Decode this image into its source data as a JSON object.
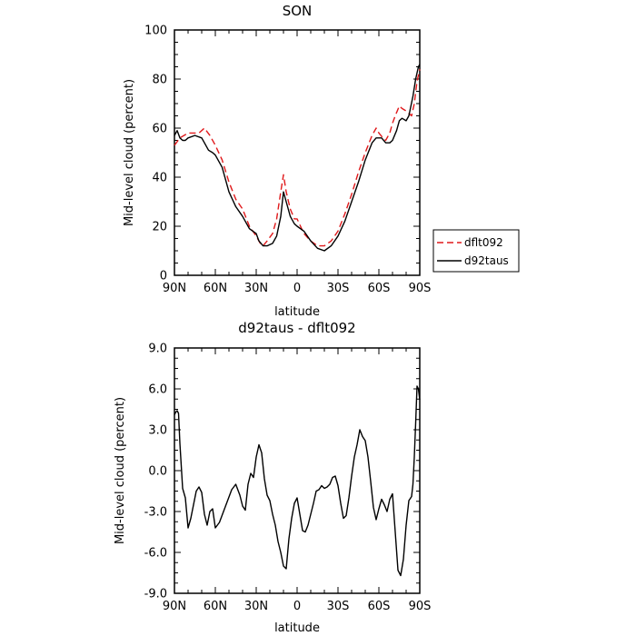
{
  "chart_data": [
    {
      "type": "line",
      "title": "SON",
      "xlabel": "latitude",
      "ylabel": "Mid-level cloud (percent)",
      "xlim": [
        90,
        -90
      ],
      "ylim": [
        0,
        100
      ],
      "xticks": [
        90,
        60,
        30,
        0,
        -30,
        -60,
        -90
      ],
      "xtick_labels": [
        "90N",
        "60N",
        "30N",
        "0",
        "30S",
        "60S",
        "90S"
      ],
      "yticks": [
        0,
        20,
        40,
        60,
        80,
        100
      ],
      "ytick_labels": [
        "0",
        "20",
        "40",
        "60",
        "80",
        "100"
      ],
      "grid": false,
      "legend_position": "right",
      "series": [
        {
          "name": "dflt092",
          "color": "#e0191b",
          "dash": "dashed",
          "x": [
            90,
            86,
            80,
            75,
            72,
            68,
            64,
            60,
            55,
            50,
            45,
            40,
            35,
            30,
            27,
            25,
            22,
            18,
            15,
            12,
            10,
            8,
            5,
            2,
            0,
            -5,
            -10,
            -15,
            -20,
            -25,
            -30,
            -35,
            -40,
            -45,
            -50,
            -55,
            -58,
            -60,
            -63,
            -65,
            -68,
            -70,
            -72,
            -75,
            -77,
            -80,
            -82,
            -84,
            -86,
            -88,
            -90
          ],
          "values": [
            53,
            56,
            58,
            58,
            58,
            60,
            57,
            53,
            47,
            38,
            31,
            27,
            20,
            16,
            13,
            12,
            14,
            17,
            23,
            34,
            41,
            34,
            27,
            23,
            23,
            17,
            14,
            12,
            12,
            14,
            18,
            25,
            33,
            42,
            50,
            57,
            60,
            58,
            56,
            55,
            58,
            62,
            65,
            69,
            68,
            67,
            66,
            65,
            70,
            79,
            84
          ]
        },
        {
          "name": "d92taus",
          "color": "#000000",
          "dash": "solid",
          "x": [
            90,
            88,
            86,
            84,
            82,
            80,
            75,
            70,
            68,
            65,
            62,
            60,
            55,
            50,
            45,
            40,
            35,
            30,
            28,
            25,
            22,
            18,
            15,
            12,
            10,
            8,
            5,
            2,
            0,
            -5,
            -10,
            -15,
            -20,
            -25,
            -30,
            -35,
            -40,
            -45,
            -50,
            -55,
            -58,
            -60,
            -62,
            -65,
            -68,
            -70,
            -73,
            -75,
            -77,
            -80,
            -82,
            -85,
            -87,
            -89,
            -90
          ],
          "values": [
            57,
            59,
            56,
            55,
            55,
            56,
            57,
            56,
            54,
            51,
            50,
            49,
            44,
            34,
            28,
            24,
            19,
            17,
            14,
            12,
            12,
            13,
            16,
            24,
            34,
            30,
            24,
            21,
            20,
            18,
            14,
            11,
            10,
            12,
            16,
            22,
            30,
            38,
            47,
            54,
            56,
            56,
            56,
            54,
            54,
            55,
            59,
            63,
            64,
            63,
            65,
            73,
            80,
            85,
            86
          ]
        }
      ]
    },
    {
      "type": "line",
      "title": "d92taus - dflt092",
      "xlabel": "latitude",
      "ylabel": "Mid-level cloud (percent)",
      "xlim": [
        90,
        -90
      ],
      "ylim": [
        -9,
        9
      ],
      "xticks": [
        90,
        60,
        30,
        0,
        -30,
        -60,
        -90
      ],
      "xtick_labels": [
        "90N",
        "60N",
        "30N",
        "0",
        "30S",
        "60S",
        "90S"
      ],
      "yticks": [
        -9,
        -6,
        -3,
        0,
        3,
        6,
        9
      ],
      "ytick_labels": [
        "-9.0",
        "-6.0",
        "-3.0",
        "0.0",
        "3.0",
        "6.0",
        "9.0"
      ],
      "grid": false,
      "series": [
        {
          "color": "#000000",
          "dash": "solid",
          "x": [
            90,
            89,
            88,
            87,
            86,
            84,
            82,
            80,
            78,
            76,
            75,
            74,
            72,
            70,
            68,
            66,
            64,
            62,
            60,
            57,
            54,
            51,
            48,
            45,
            42,
            40,
            38,
            36,
            34,
            32,
            30,
            28,
            26,
            24,
            22,
            20,
            18,
            16,
            14,
            12,
            10,
            8,
            6,
            4,
            2,
            0,
            -2,
            -4,
            -6,
            -8,
            -10,
            -12,
            -14,
            -16,
            -18,
            -20,
            -22,
            -24,
            -26,
            -28,
            -30,
            -32,
            -34,
            -36,
            -38,
            -40,
            -42,
            -44,
            -46,
            -48,
            -50,
            -52,
            -54,
            -56,
            -58,
            -60,
            -62,
            -64,
            -66,
            -68,
            -70,
            -72,
            -74,
            -76,
            -78,
            -80,
            -82,
            -84,
            -85,
            -86,
            -87,
            -88,
            -89,
            -90
          ],
          "values": [
            4.1,
            4.3,
            4.4,
            4.2,
            2.0,
            -1.3,
            -2.0,
            -4.2,
            -3.5,
            -2.5,
            -2.0,
            -1.5,
            -1.2,
            -1.6,
            -3.2,
            -4.0,
            -3.0,
            -2.8,
            -4.2,
            -3.8,
            -3.0,
            -2.2,
            -1.4,
            -1.0,
            -1.8,
            -2.6,
            -2.9,
            -1.0,
            -0.2,
            -0.5,
            1.0,
            1.9,
            1.3,
            -0.6,
            -1.8,
            -2.2,
            -3.2,
            -4.0,
            -5.2,
            -6.0,
            -7.0,
            -7.2,
            -5.0,
            -3.5,
            -2.4,
            -2.0,
            -3.2,
            -4.4,
            -4.5,
            -4.0,
            -3.2,
            -2.4,
            -1.5,
            -1.4,
            -1.1,
            -1.3,
            -1.2,
            -1.0,
            -0.5,
            -0.4,
            -1.1,
            -2.4,
            -3.5,
            -3.3,
            -2.0,
            -0.4,
            1.0,
            1.9,
            3.0,
            2.5,
            2.2,
            1.0,
            -0.8,
            -2.7,
            -3.6,
            -2.8,
            -2.1,
            -2.5,
            -3.0,
            -2.1,
            -1.7,
            -4.5,
            -7.3,
            -7.7,
            -6.5,
            -4.0,
            -2.2,
            -1.9,
            -1.0,
            1.0,
            3.5,
            6.2,
            6.0,
            5.2
          ]
        }
      ]
    }
  ]
}
